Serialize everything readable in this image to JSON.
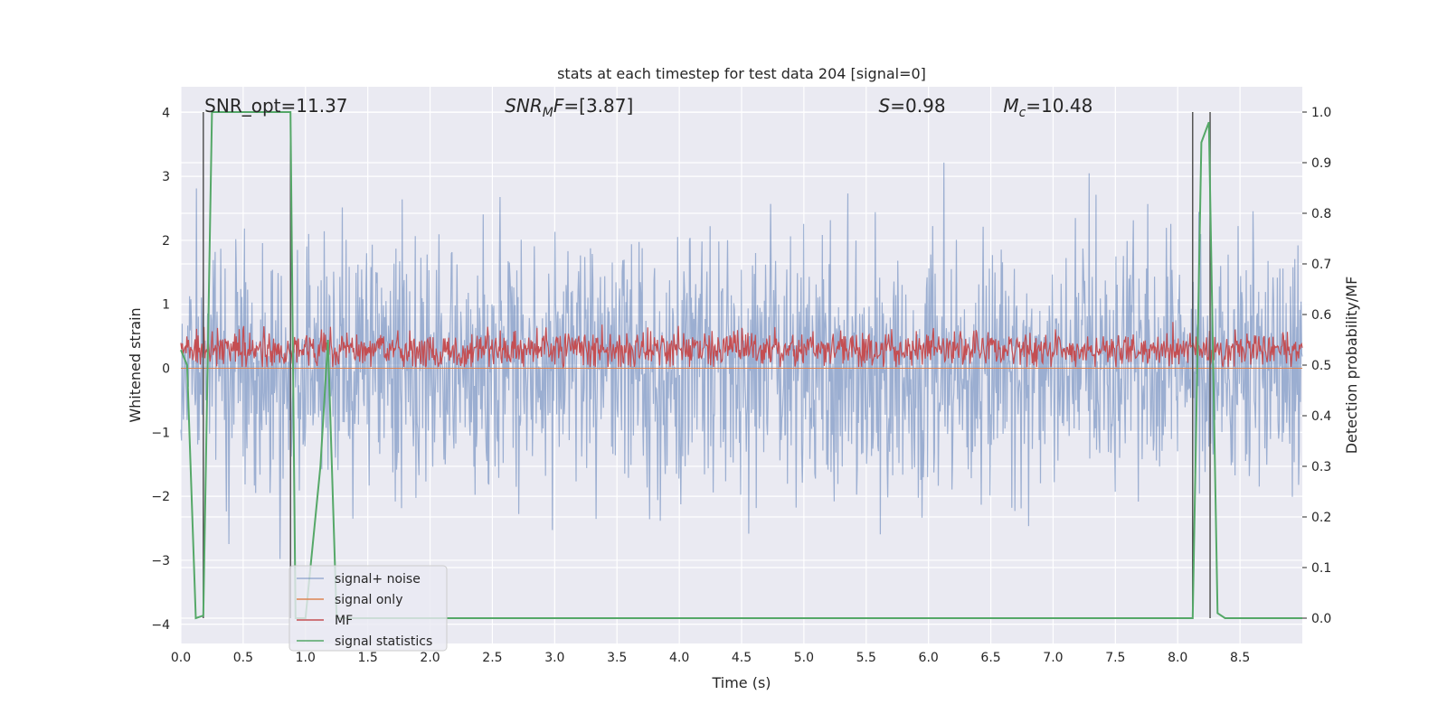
{
  "chart_data": {
    "type": "line",
    "title": "stats at each timestep for test data 204 [signal=0]",
    "xlabel": "Time (s)",
    "ylabel_left": "Whitened strain",
    "ylabel_right": "Detection probability/MF",
    "xlim": [
      0.0,
      9.0
    ],
    "ylim_left": [
      -4.3,
      4.4
    ],
    "ylim_right": [
      -0.05,
      1.05
    ],
    "xticks": [
      0.0,
      0.5,
      1.0,
      1.5,
      2.0,
      2.5,
      3.0,
      3.5,
      4.0,
      4.5,
      5.0,
      5.5,
      6.0,
      6.5,
      7.0,
      7.5,
      8.0,
      8.5
    ],
    "xtick_labels": [
      "0.0",
      "0.5",
      "1.0",
      "1.5",
      "2.0",
      "2.5",
      "3.0",
      "3.5",
      "4.0",
      "4.5",
      "5.0",
      "5.5",
      "6.0",
      "6.5",
      "7.0",
      "7.5",
      "8.0",
      "8.5"
    ],
    "yticks_left": [
      -4,
      -3,
      -2,
      -1,
      0,
      1,
      2,
      3,
      4
    ],
    "ytick_labels_left": [
      "−4",
      "−3",
      "−2",
      "−1",
      "0",
      "1",
      "2",
      "3",
      "4"
    ],
    "yticks_right": [
      0.0,
      0.1,
      0.2,
      0.3,
      0.4,
      0.5,
      0.6,
      0.7,
      0.8,
      0.9,
      1.0
    ],
    "ytick_labels_right": [
      "0.0",
      "0.1",
      "0.2",
      "0.3",
      "0.4",
      "0.5",
      "0.6",
      "0.7",
      "0.8",
      "0.9",
      "1.0"
    ],
    "grid": true,
    "legend_placement": "lower-left",
    "annotations": [
      {
        "text": "SNR_opt=11.37",
        "x": 0.19
      },
      {
        "text": "SNR_MF=[3.87]",
        "x": 2.6
      },
      {
        "text": "S=0.98",
        "x": 5.6
      },
      {
        "text": "M_c=10.48",
        "x": 6.6
      }
    ],
    "vlines": [
      0.18,
      0.88,
      8.12,
      8.26
    ],
    "series": [
      {
        "name": "signal+ noise",
        "color": "#4c72b0",
        "alpha": 0.5,
        "axis": "left",
        "kind": "noise",
        "amplitude_sigma": 1.0,
        "peak_max": 4.0,
        "peak_min": -3.9
      },
      {
        "name": "signal only",
        "color": "#dd8452",
        "axis": "left",
        "kind": "flat",
        "value": 0.0
      },
      {
        "name": "MF",
        "color": "#c44e52",
        "axis": "left",
        "kind": "mf_band",
        "low": 0.05,
        "high": 0.75
      },
      {
        "name": "signal statistics",
        "color": "#55a868",
        "axis": "right",
        "x": [
          0.0,
          0.05,
          0.12,
          0.18,
          0.25,
          0.5,
          0.86,
          0.88,
          0.92,
          1.0,
          1.12,
          1.18,
          1.25,
          1.5,
          2.0,
          3.0,
          4.0,
          5.0,
          6.0,
          7.0,
          8.0,
          8.12,
          8.19,
          8.25,
          8.32,
          8.38,
          8.5,
          9.0
        ],
        "y": [
          0.53,
          0.5,
          0.0,
          0.005,
          1.0,
          1.0,
          1.0,
          1.0,
          0.0,
          0.0,
          0.3,
          0.55,
          0.0,
          0.0,
          0.0,
          0.0,
          0.0,
          0.0,
          0.0,
          0.0,
          0.0,
          0.0,
          0.94,
          0.98,
          0.01,
          0.0,
          0.0,
          0.0
        ]
      }
    ]
  }
}
